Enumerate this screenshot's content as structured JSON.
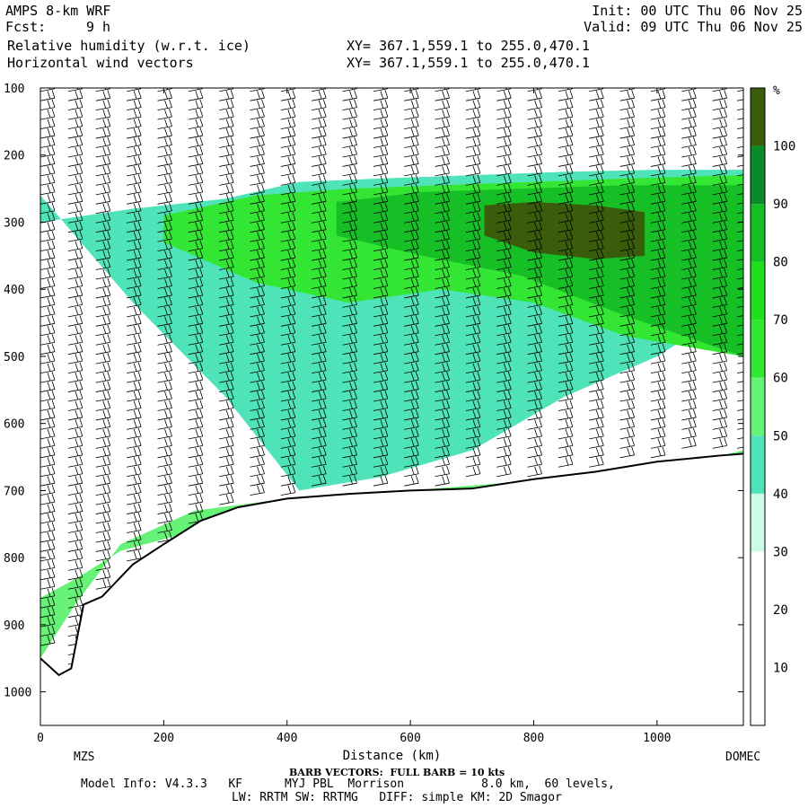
{
  "header": {
    "title": "AMPS 8-km WRF",
    "fcst_label": "Fcst:",
    "fcst_value": "9 h",
    "field1": "Relative humidity (w.r.t. ice)",
    "field2": "Horizontal wind vectors",
    "init": "Init: 00 UTC Thu 06 Nov 25",
    "valid": "Valid: 09 UTC Thu 06 Nov 25",
    "xy1": "XY= 367.1,559.1 to 255.0,470.1",
    "xy2": "XY= 367.1,559.1 to 255.0,470.1"
  },
  "footer": {
    "left_station": "MZS",
    "right_station": "DOMEC",
    "barb_note": "BARB VECTORS:  FULL BARB = 10 kts",
    "model_info": "Model Info: V4.3.3   KF      MYJ PBL  Morrison           8.0 km,  60 levels,",
    "model_info2": "LW: RRTM SW: RRTMG   DIFF: simple KM: 2D Smagor"
  },
  "colors": {
    "rh_30_40": "#ccfbe6",
    "rh_40_50": "#4fe3b9",
    "rh_50_60": "#66f276",
    "rh_60_70": "#33e633",
    "rh_70_80": "#1edf1e",
    "rh_80_90": "#16bf26",
    "rh_90_100": "#0a8a2a",
    "rh_100_plus": "#3a5d0b",
    "terrain_line": "#000000"
  },
  "chart_data": {
    "type": "heatmap",
    "title": "Relative humidity (w.r.t. ice)",
    "overlay": "Horizontal wind vectors",
    "xlabel": "Distance (km)",
    "ylabel": "",
    "xlim": [
      0,
      1140
    ],
    "ylim": [
      1050,
      100
    ],
    "x_ticks": [
      0,
      200,
      400,
      600,
      800,
      1000
    ],
    "y_ticks": [
      100,
      200,
      300,
      400,
      500,
      600,
      700,
      800,
      900,
      1000
    ],
    "colorbar": {
      "unit": "%",
      "levels": [
        10,
        20,
        30,
        40,
        50,
        60,
        70,
        80,
        90,
        100
      ]
    },
    "terrain_surface": {
      "distance_km": [
        0,
        30,
        50,
        70,
        100,
        150,
        200,
        260,
        320,
        400,
        500,
        600,
        700,
        800,
        900,
        1000,
        1100,
        1140
      ],
      "pressure_hpa": [
        950,
        975,
        965,
        870,
        858,
        810,
        780,
        745,
        725,
        712,
        705,
        700,
        697,
        683,
        672,
        657,
        648,
        645
      ]
    },
    "moist_layers": [
      {
        "category": "rh_40_50",
        "x": [
          0,
          150,
          300,
          420,
          550,
          700,
          850,
          1000,
          1140,
          1140,
          1000,
          850,
          700,
          550,
          420,
          300,
          150,
          0
        ],
        "p": [
          300,
          280,
          265,
          240,
          235,
          230,
          225,
          222,
          222,
          420,
          500,
          560,
          640,
          680,
          700,
          560,
          420,
          260
        ]
      },
      {
        "category": "rh_60_70",
        "x": [
          200,
          350,
          500,
          650,
          800,
          950,
          1140,
          1140,
          950,
          800,
          650,
          500,
          350,
          200
        ],
        "p": [
          290,
          260,
          250,
          245,
          240,
          235,
          230,
          500,
          470,
          420,
          400,
          420,
          390,
          330
        ]
      },
      {
        "category": "rh_80_90",
        "x": [
          480,
          620,
          780,
          950,
          1140,
          1140,
          950,
          780,
          620,
          480
        ],
        "p": [
          270,
          255,
          250,
          245,
          245,
          500,
          440,
          380,
          350,
          320
        ]
      },
      {
        "category": "rh_100_plus",
        "x": [
          720,
          800,
          900,
          980,
          980,
          900,
          800,
          720
        ],
        "p": [
          275,
          270,
          275,
          285,
          350,
          355,
          345,
          320
        ]
      },
      {
        "category": "rh_50_60",
        "x": [
          0,
          60,
          130,
          250,
          400,
          600,
          800,
          1000,
          1140,
          1140,
          1000,
          800,
          600,
          400,
          250,
          130,
          60,
          0
        ],
        "p": [
          860,
          830,
          790,
          760,
          720,
          705,
          690,
          670,
          640,
          650,
          660,
          685,
          700,
          712,
          730,
          780,
          865,
          950
        ]
      }
    ],
    "wind_barb_columns_km": [
      0,
      45,
      90,
      140,
      190,
      240,
      290,
      340,
      390,
      440,
      490,
      540,
      590,
      640,
      690,
      740,
      790,
      840,
      890,
      940,
      990,
      1040,
      1090,
      1130
    ]
  }
}
